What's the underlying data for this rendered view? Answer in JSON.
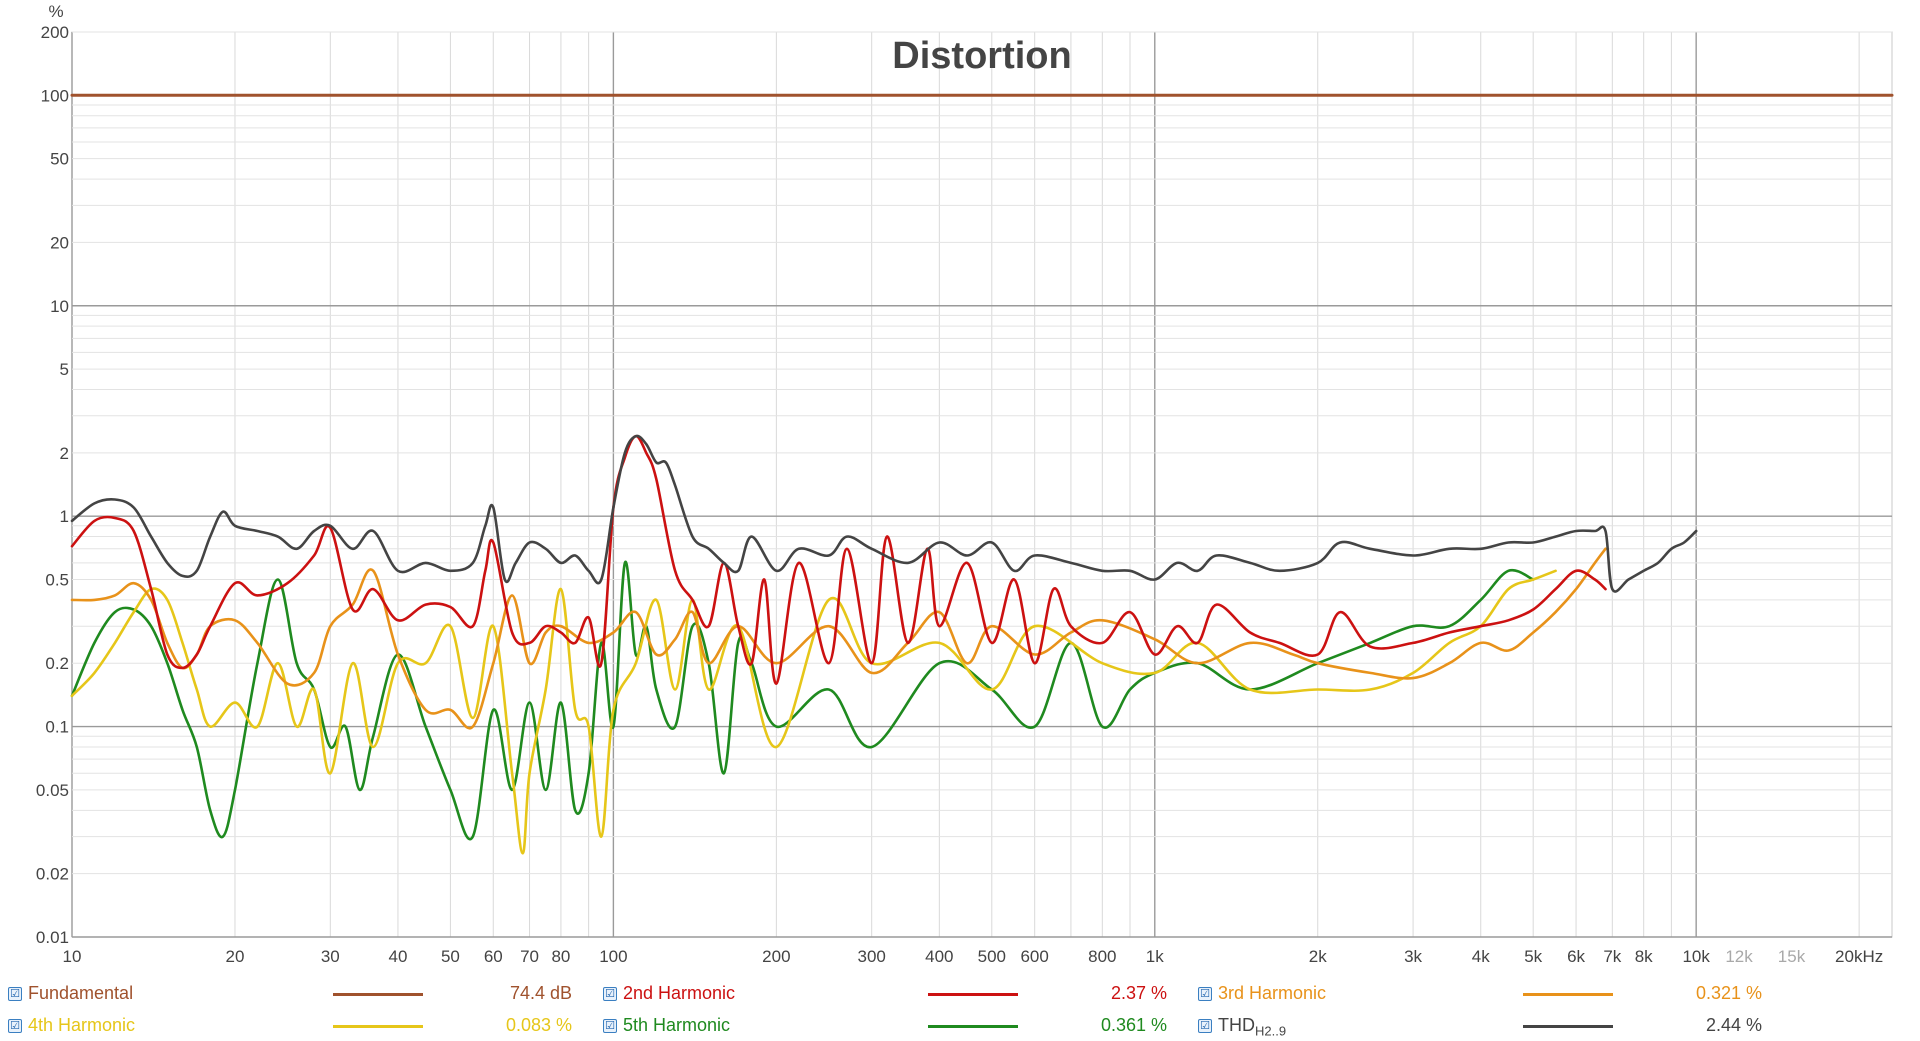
{
  "chart_data": {
    "type": "line",
    "title": "Distortion",
    "y_unit": "%",
    "x_unit": "Hz",
    "xscale": "log",
    "yscale": "log",
    "xlim": [
      10,
      23000
    ],
    "ylim": [
      0.01,
      200
    ],
    "y_ticks": [
      {
        "value": 200,
        "label": "200"
      },
      {
        "value": 100,
        "label": "100"
      },
      {
        "value": 50,
        "label": "50"
      },
      {
        "value": 20,
        "label": "20"
      },
      {
        "value": 10,
        "label": "10"
      },
      {
        "value": 5,
        "label": "5"
      },
      {
        "value": 2,
        "label": "2"
      },
      {
        "value": 1,
        "label": "1"
      },
      {
        "value": 0.5,
        "label": "0.5"
      },
      {
        "value": 0.2,
        "label": "0.2"
      },
      {
        "value": 0.1,
        "label": "0.1"
      },
      {
        "value": 0.05,
        "label": "0.05"
      },
      {
        "value": 0.02,
        "label": "0.02"
      },
      {
        "value": 0.01,
        "label": "0.01"
      }
    ],
    "x_ticks": [
      {
        "value": 10,
        "label": "10"
      },
      {
        "value": 20,
        "label": "20"
      },
      {
        "value": 30,
        "label": "30"
      },
      {
        "value": 40,
        "label": "40"
      },
      {
        "value": 50,
        "label": "50"
      },
      {
        "value": 60,
        "label": "60"
      },
      {
        "value": 70,
        "label": "70"
      },
      {
        "value": 80,
        "label": "80"
      },
      {
        "value": 100,
        "label": "100"
      },
      {
        "value": 200,
        "label": "200"
      },
      {
        "value": 300,
        "label": "300"
      },
      {
        "value": 400,
        "label": "400"
      },
      {
        "value": 500,
        "label": "500"
      },
      {
        "value": 600,
        "label": "600"
      },
      {
        "value": 800,
        "label": "800"
      },
      {
        "value": 1000,
        "label": "1k"
      },
      {
        "value": 2000,
        "label": "2k"
      },
      {
        "value": 3000,
        "label": "3k"
      },
      {
        "value": 4000,
        "label": "4k"
      },
      {
        "value": 5000,
        "label": "5k"
      },
      {
        "value": 6000,
        "label": "6k"
      },
      {
        "value": 7000,
        "label": "7k"
      },
      {
        "value": 8000,
        "label": "8k"
      },
      {
        "value": 10000,
        "label": "10k"
      },
      {
        "value": 12000,
        "label": "12k",
        "faded": true
      },
      {
        "value": 15000,
        "label": "15k",
        "faded": true
      },
      {
        "value": 20000,
        "label": "20kHz"
      }
    ],
    "series": [
      {
        "name": "Fundamental",
        "color": "#a0522d",
        "value_text": "74.4 dB",
        "x": [
          10,
          23000
        ],
        "y": [
          100,
          100
        ]
      },
      {
        "name": "2nd Harmonic",
        "color": "#cc1111",
        "value_text": "2.37 %",
        "x": [
          10,
          11,
          12,
          13,
          14,
          15,
          16,
          17,
          18,
          20,
          22,
          25,
          28,
          30,
          33,
          36,
          40,
          45,
          50,
          55,
          58,
          60,
          65,
          70,
          75,
          80,
          85,
          90,
          95,
          100,
          105,
          110,
          115,
          120,
          130,
          140,
          150,
          160,
          170,
          180,
          190,
          200,
          220,
          250,
          270,
          300,
          320,
          350,
          380,
          400,
          450,
          500,
          550,
          600,
          650,
          700,
          800,
          900,
          1000,
          1100,
          1200,
          1300,
          1500,
          1700,
          2000,
          2200,
          2500,
          3000,
          3500,
          4000,
          4500,
          5000,
          5500,
          6000,
          6500,
          6800
        ],
        "y": [
          0.72,
          0.95,
          0.98,
          0.85,
          0.45,
          0.22,
          0.19,
          0.22,
          0.3,
          0.48,
          0.42,
          0.48,
          0.65,
          0.88,
          0.36,
          0.45,
          0.32,
          0.38,
          0.37,
          0.3,
          0.55,
          0.75,
          0.28,
          0.25,
          0.3,
          0.28,
          0.25,
          0.33,
          0.2,
          1.1,
          1.9,
          2.4,
          2.0,
          1.5,
          0.55,
          0.4,
          0.3,
          0.6,
          0.3,
          0.2,
          0.5,
          0.16,
          0.6,
          0.2,
          0.7,
          0.2,
          0.8,
          0.25,
          0.7,
          0.3,
          0.6,
          0.25,
          0.5,
          0.2,
          0.45,
          0.3,
          0.25,
          0.35,
          0.22,
          0.3,
          0.25,
          0.38,
          0.28,
          0.25,
          0.22,
          0.35,
          0.24,
          0.25,
          0.28,
          0.3,
          0.32,
          0.36,
          0.45,
          0.55,
          0.5,
          0.45
        ]
      },
      {
        "name": "3rd Harmonic",
        "color": "#e8921a",
        "value_text": "0.321 %",
        "x": [
          10,
          11,
          12,
          13,
          14,
          15,
          16,
          17,
          18,
          20,
          22,
          25,
          28,
          30,
          33,
          36,
          40,
          45,
          50,
          55,
          60,
          65,
          70,
          75,
          80,
          90,
          100,
          110,
          120,
          130,
          140,
          150,
          170,
          200,
          250,
          300,
          350,
          400,
          450,
          500,
          600,
          700,
          800,
          1000,
          1200,
          1500,
          1800,
          2000,
          2500,
          3000,
          3500,
          4000,
          4500,
          5000,
          5500,
          6000,
          6500,
          6800
        ],
        "y": [
          0.4,
          0.4,
          0.42,
          0.48,
          0.4,
          0.25,
          0.19,
          0.22,
          0.3,
          0.32,
          0.25,
          0.16,
          0.18,
          0.3,
          0.38,
          0.55,
          0.22,
          0.12,
          0.12,
          0.1,
          0.2,
          0.42,
          0.2,
          0.28,
          0.3,
          0.25,
          0.28,
          0.35,
          0.22,
          0.26,
          0.35,
          0.2,
          0.3,
          0.2,
          0.3,
          0.18,
          0.25,
          0.35,
          0.2,
          0.3,
          0.22,
          0.28,
          0.32,
          0.26,
          0.2,
          0.25,
          0.22,
          0.2,
          0.18,
          0.17,
          0.2,
          0.25,
          0.23,
          0.28,
          0.35,
          0.45,
          0.6,
          0.7
        ]
      },
      {
        "name": "4th Harmonic",
        "color": "#e6c619",
        "value_text": "0.083 %",
        "x": [
          10,
          11,
          12,
          13,
          14,
          15,
          16,
          17,
          18,
          20,
          22,
          24,
          26,
          28,
          30,
          33,
          36,
          40,
          45,
          50,
          55,
          60,
          65,
          68,
          70,
          75,
          80,
          85,
          90,
          95,
          100,
          110,
          120,
          130,
          140,
          150,
          170,
          200,
          250,
          300,
          400,
          500,
          600,
          800,
          1000,
          1200,
          1500,
          2000,
          2500,
          3000,
          3500,
          4000,
          4500,
          5000,
          5500
        ],
        "y": [
          0.14,
          0.18,
          0.25,
          0.35,
          0.45,
          0.4,
          0.25,
          0.15,
          0.1,
          0.13,
          0.1,
          0.2,
          0.1,
          0.15,
          0.06,
          0.2,
          0.08,
          0.2,
          0.2,
          0.3,
          0.11,
          0.3,
          0.06,
          0.025,
          0.06,
          0.15,
          0.45,
          0.12,
          0.1,
          0.03,
          0.12,
          0.2,
          0.4,
          0.15,
          0.4,
          0.15,
          0.3,
          0.08,
          0.4,
          0.2,
          0.25,
          0.15,
          0.3,
          0.2,
          0.18,
          0.25,
          0.15,
          0.15,
          0.15,
          0.18,
          0.25,
          0.3,
          0.45,
          0.5,
          0.55
        ]
      },
      {
        "name": "5th Harmonic",
        "color": "#1f8a1f",
        "value_text": "0.361 %",
        "x": [
          10,
          11,
          12,
          13,
          14,
          15,
          16,
          17,
          18,
          19,
          20,
          22,
          24,
          26,
          28,
          30,
          32,
          34,
          36,
          40,
          45,
          50,
          55,
          60,
          65,
          70,
          75,
          80,
          85,
          90,
          95,
          100,
          105,
          110,
          115,
          120,
          130,
          140,
          150,
          160,
          170,
          180,
          200,
          250,
          300,
          400,
          500,
          600,
          700,
          800,
          900,
          1000,
          1200,
          1500,
          2000,
          2500,
          3000,
          3500,
          4000,
          4500,
          5000
        ],
        "y": [
          0.14,
          0.25,
          0.35,
          0.36,
          0.3,
          0.2,
          0.12,
          0.08,
          0.04,
          0.03,
          0.05,
          0.2,
          0.5,
          0.2,
          0.15,
          0.08,
          0.1,
          0.05,
          0.09,
          0.22,
          0.1,
          0.05,
          0.03,
          0.12,
          0.05,
          0.13,
          0.05,
          0.13,
          0.04,
          0.06,
          0.25,
          0.1,
          0.6,
          0.22,
          0.3,
          0.15,
          0.1,
          0.3,
          0.2,
          0.06,
          0.25,
          0.2,
          0.1,
          0.15,
          0.08,
          0.2,
          0.15,
          0.1,
          0.25,
          0.1,
          0.15,
          0.18,
          0.2,
          0.15,
          0.2,
          0.25,
          0.3,
          0.3,
          0.4,
          0.55,
          0.5
        ]
      },
      {
        "name": "THD",
        "sub": "H2..9",
        "color": "#444444",
        "value_text": "2.44 %",
        "x": [
          10,
          11,
          12,
          13,
          14,
          15,
          16,
          17,
          18,
          19,
          20,
          22,
          24,
          26,
          28,
          30,
          33,
          36,
          40,
          45,
          50,
          55,
          58,
          60,
          63,
          66,
          70,
          75,
          80,
          85,
          90,
          95,
          100,
          105,
          110,
          115,
          120,
          125,
          130,
          140,
          150,
          160,
          170,
          180,
          200,
          220,
          250,
          270,
          300,
          350,
          400,
          450,
          500,
          550,
          600,
          700,
          800,
          900,
          1000,
          1100,
          1200,
          1300,
          1500,
          1700,
          2000,
          2200,
          2500,
          3000,
          3500,
          4000,
          4500,
          5000,
          5500,
          6000,
          6500,
          6800,
          7000,
          7500,
          8000,
          8500,
          9000,
          9500,
          10000
        ],
        "y": [
          0.95,
          1.15,
          1.2,
          1.1,
          0.8,
          0.6,
          0.52,
          0.55,
          0.8,
          1.05,
          0.9,
          0.85,
          0.8,
          0.7,
          0.85,
          0.9,
          0.7,
          0.85,
          0.55,
          0.6,
          0.55,
          0.6,
          0.9,
          1.1,
          0.5,
          0.6,
          0.75,
          0.7,
          0.6,
          0.65,
          0.55,
          0.5,
          1.1,
          2.0,
          2.4,
          2.2,
          1.8,
          1.8,
          1.4,
          0.8,
          0.7,
          0.6,
          0.55,
          0.8,
          0.55,
          0.7,
          0.65,
          0.8,
          0.7,
          0.6,
          0.75,
          0.65,
          0.75,
          0.55,
          0.65,
          0.6,
          0.55,
          0.55,
          0.5,
          0.6,
          0.55,
          0.65,
          0.6,
          0.55,
          0.6,
          0.75,
          0.7,
          0.65,
          0.7,
          0.7,
          0.75,
          0.75,
          0.8,
          0.85,
          0.85,
          0.85,
          0.45,
          0.5,
          0.55,
          0.6,
          0.7,
          0.75,
          0.85
        ]
      }
    ]
  }
}
